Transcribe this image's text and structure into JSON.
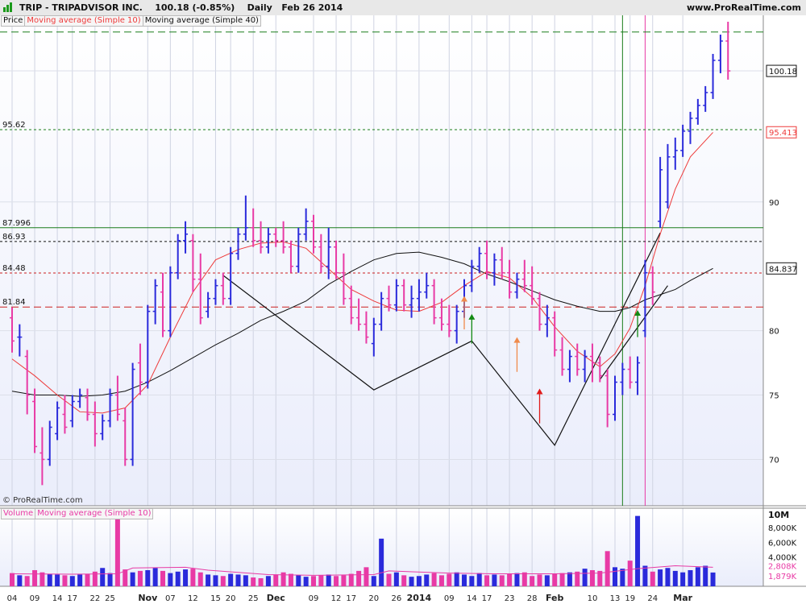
{
  "header": {
    "title": "TRIP - TRIPADVISOR INC.",
    "last": "100.18 (-0.85%)",
    "period": "Daily",
    "date": "Feb 26 2014",
    "site": "www.ProRealTime.com"
  },
  "legend": {
    "price": "Price",
    "ma10": "Moving average (Simple 10)",
    "ma40": "Moving average (Simple 40)",
    "volume": "Volume",
    "vol_ma": "Moving average (Simple 10)"
  },
  "watermark": "© ProRealTime.com",
  "colors": {
    "up": "#2a2adb",
    "down": "#e83aa5",
    "ma10": "#ee3b3b",
    "ma40": "#111111",
    "level_green": "#1a7d1a",
    "level_red": "#cc1f1f",
    "plot_bg": "#eaedfb",
    "arrow_green": "#138a13",
    "arrow_orange": "#f08a4b",
    "arrow_red": "#e01b1b"
  },
  "chart_data": {
    "type": "bar",
    "ylim": [
      66.4,
      104.5
    ],
    "y_ticks": [
      "70",
      "75",
      "80",
      "90"
    ],
    "current_price_label": "100.18",
    "ma10_label": "95.413",
    "ma40_label": "84.837",
    "levels": [
      {
        "label": "",
        "value": 103.2,
        "style": "dashed",
        "color": "level_green"
      },
      {
        "label": "95.62",
        "value": 95.62,
        "style": "dotted",
        "color": "level_green"
      },
      {
        "label": "87.996",
        "value": 87.996,
        "style": "solid",
        "color": "level_green"
      },
      {
        "label": "86.93",
        "value": 86.93,
        "style": "dotted",
        "color": "ma40"
      },
      {
        "label": "84.48",
        "value": 84.48,
        "style": "dotted",
        "color": "level_red"
      },
      {
        "label": "81.84",
        "value": 81.84,
        "style": "dashed",
        "color": "level_red"
      }
    ],
    "x_labels": [
      {
        "label": "04",
        "bar": 0
      },
      {
        "label": "09",
        "bar": 3
      },
      {
        "label": "14",
        "bar": 6
      },
      {
        "label": "17",
        "bar": 8
      },
      {
        "label": "22",
        "bar": 11
      },
      {
        "label": "25",
        "bar": 13
      },
      {
        "label": "Nov",
        "bar": 18
      },
      {
        "label": "07",
        "bar": 21
      },
      {
        "label": "12",
        "bar": 24
      },
      {
        "label": "15",
        "bar": 27
      },
      {
        "label": "20",
        "bar": 29
      },
      {
        "label": "25",
        "bar": 32
      },
      {
        "label": "Dec",
        "bar": 35
      },
      {
        "label": "09",
        "bar": 40
      },
      {
        "label": "12",
        "bar": 43
      },
      {
        "label": "17",
        "bar": 45
      },
      {
        "label": "20",
        "bar": 48
      },
      {
        "label": "26",
        "bar": 51
      },
      {
        "label": "2014",
        "bar": 54
      },
      {
        "label": "09",
        "bar": 58
      },
      {
        "label": "14",
        "bar": 61
      },
      {
        "label": "17",
        "bar": 63
      },
      {
        "label": "23",
        "bar": 66
      },
      {
        "label": "28",
        "bar": 69
      },
      {
        "label": "Feb",
        "bar": 72
      },
      {
        "label": "10",
        "bar": 77
      },
      {
        "label": "13",
        "bar": 80
      },
      {
        "label": "19",
        "bar": 82
      },
      {
        "label": "24",
        "bar": 85
      },
      {
        "label": "Mar",
        "bar": 89
      }
    ],
    "ohlc": [
      [
        81.0,
        81.8,
        78.3,
        79.2
      ],
      [
        79.5,
        80.5,
        78.0,
        79.5
      ],
      [
        78.0,
        78.5,
        73.5,
        75.0
      ],
      [
        74.5,
        75.5,
        70.5,
        71.0
      ],
      [
        70.5,
        72.5,
        68.0,
        70.0
      ],
      [
        70.0,
        73.0,
        69.5,
        72.5
      ],
      [
        72.0,
        74.5,
        71.5,
        74.0
      ],
      [
        73.5,
        75.0,
        72.0,
        72.5
      ],
      [
        73.0,
        75.0,
        72.5,
        74.5
      ],
      [
        74.5,
        75.5,
        74.0,
        75.0
      ],
      [
        74.8,
        75.5,
        73.0,
        73.5
      ],
      [
        73.5,
        74.5,
        71.0,
        72.0
      ],
      [
        72.0,
        73.5,
        71.5,
        73.0
      ],
      [
        73.0,
        75.5,
        72.5,
        75.0
      ],
      [
        75.0,
        76.5,
        73.0,
        73.5
      ],
      [
        73.0,
        74.0,
        69.5,
        70.0
      ],
      [
        70.0,
        77.5,
        69.5,
        77.0
      ],
      [
        77.5,
        79.0,
        75.0,
        76.0
      ],
      [
        76.0,
        82.0,
        75.5,
        81.5
      ],
      [
        81.5,
        84.0,
        80.5,
        83.5
      ],
      [
        83.0,
        84.5,
        79.5,
        80.0
      ],
      [
        80.0,
        85.0,
        79.5,
        84.5
      ],
      [
        84.5,
        87.5,
        84.0,
        87.0
      ],
      [
        87.0,
        88.5,
        86.0,
        87.5
      ],
      [
        87.0,
        87.5,
        83.0,
        84.0
      ],
      [
        84.0,
        86.0,
        80.5,
        81.0
      ],
      [
        81.5,
        83.0,
        81.0,
        82.5
      ],
      [
        82.5,
        84.0,
        82.0,
        83.5
      ],
      [
        83.5,
        84.5,
        82.0,
        82.5
      ],
      [
        82.5,
        86.5,
        82.0,
        86.0
      ],
      [
        86.0,
        88.0,
        85.5,
        87.5
      ],
      [
        87.5,
        90.5,
        87.0,
        88.0
      ],
      [
        88.0,
        89.5,
        86.5,
        87.0
      ],
      [
        87.0,
        88.5,
        86.0,
        86.5
      ],
      [
        86.5,
        88.0,
        86.0,
        87.5
      ],
      [
        87.5,
        88.0,
        86.5,
        87.0
      ],
      [
        87.0,
        88.5,
        86.0,
        86.5
      ],
      [
        86.5,
        87.0,
        84.5,
        85.0
      ],
      [
        85.0,
        88.0,
        84.5,
        87.5
      ],
      [
        87.5,
        89.5,
        87.0,
        88.5
      ],
      [
        88.5,
        89.0,
        86.0,
        86.5
      ],
      [
        86.5,
        87.5,
        84.5,
        85.0
      ],
      [
        85.0,
        88.0,
        84.0,
        86.5
      ],
      [
        86.5,
        87.0,
        84.0,
        84.5
      ],
      [
        84.5,
        86.0,
        82.0,
        82.5
      ],
      [
        82.5,
        83.5,
        80.5,
        81.0
      ],
      [
        81.0,
        82.5,
        80.0,
        80.5
      ],
      [
        80.5,
        81.5,
        79.0,
        79.5
      ],
      [
        79.0,
        81.0,
        78.0,
        80.5
      ],
      [
        80.5,
        83.0,
        80.0,
        82.5
      ],
      [
        82.5,
        83.5,
        81.5,
        82.0
      ],
      [
        82.0,
        84.0,
        81.5,
        83.5
      ],
      [
        83.5,
        84.0,
        81.5,
        82.0
      ],
      [
        82.0,
        83.5,
        81.0,
        82.5
      ],
      [
        82.5,
        84.0,
        81.5,
        83.0
      ],
      [
        83.0,
        84.5,
        82.5,
        83.5
      ],
      [
        83.5,
        84.0,
        80.5,
        81.0
      ],
      [
        81.0,
        82.5,
        80.0,
        80.5
      ],
      [
        80.5,
        82.0,
        79.5,
        80.0
      ],
      [
        80.0,
        82.0,
        79.0,
        81.5
      ],
      [
        81.5,
        84.0,
        81.0,
        83.5
      ],
      [
        83.5,
        85.5,
        83.0,
        85.0
      ],
      [
        85.0,
        86.5,
        84.5,
        86.0
      ],
      [
        86.0,
        87.0,
        84.0,
        84.5
      ],
      [
        84.5,
        86.0,
        83.5,
        85.5
      ],
      [
        85.5,
        86.5,
        84.0,
        84.5
      ],
      [
        84.5,
        85.5,
        82.5,
        83.0
      ],
      [
        83.0,
        84.5,
        82.5,
        84.0
      ],
      [
        84.0,
        85.5,
        83.0,
        83.5
      ],
      [
        83.5,
        85.0,
        82.0,
        82.5
      ],
      [
        82.5,
        83.0,
        80.0,
        80.5
      ],
      [
        80.5,
        82.0,
        79.5,
        81.0
      ],
      [
        81.0,
        81.5,
        78.0,
        78.5
      ],
      [
        78.5,
        79.5,
        76.5,
        77.0
      ],
      [
        77.0,
        78.5,
        76.0,
        78.0
      ],
      [
        78.0,
        79.0,
        76.5,
        77.0
      ],
      [
        77.0,
        78.5,
        76.0,
        78.0
      ],
      [
        78.0,
        79.0,
        76.0,
        77.5
      ],
      [
        77.5,
        78.0,
        76.0,
        76.5
      ],
      [
        76.5,
        77.0,
        72.5,
        73.5
      ],
      [
        73.5,
        76.5,
        73.0,
        76.0
      ],
      [
        76.0,
        77.5,
        75.0,
        77.0
      ],
      [
        77.0,
        78.0,
        75.5,
        76.0
      ],
      [
        76.0,
        78.0,
        75.0,
        77.5
      ],
      [
        80.0,
        85.5,
        79.5,
        84.5
      ],
      [
        84.5,
        85.0,
        82.0,
        83.0
      ],
      [
        88.5,
        93.5,
        88.0,
        92.5
      ],
      [
        90.0,
        94.5,
        89.5,
        93.5
      ],
      [
        93.5,
        95.0,
        92.5,
        94.0
      ],
      [
        94.0,
        96.0,
        93.5,
        95.5
      ],
      [
        95.5,
        97.0,
        94.5,
        96.5
      ],
      [
        96.5,
        98.0,
        96.0,
        97.5
      ],
      [
        97.5,
        99.0,
        97.0,
        98.5
      ],
      [
        98.5,
        101.5,
        98.0,
        101.0
      ],
      [
        101.0,
        103.0,
        100.0,
        102.5
      ],
      [
        102.5,
        104.0,
        99.5,
        100.18
      ]
    ],
    "ma10": [
      [
        0,
        77.8
      ],
      [
        3,
        76.5
      ],
      [
        6,
        75.0
      ],
      [
        9,
        73.7
      ],
      [
        12,
        73.6
      ],
      [
        15,
        74.0
      ],
      [
        18,
        75.8
      ],
      [
        21,
        79.5
      ],
      [
        24,
        83.0
      ],
      [
        27,
        85.5
      ],
      [
        30,
        86.3
      ],
      [
        33,
        86.8
      ],
      [
        36,
        86.9
      ],
      [
        39,
        86.4
      ],
      [
        42,
        84.8
      ],
      [
        45,
        83.2
      ],
      [
        48,
        82.3
      ],
      [
        51,
        81.6
      ],
      [
        54,
        81.5
      ],
      [
        57,
        82.2
      ],
      [
        60,
        83.5
      ],
      [
        63,
        84.6
      ],
      [
        66,
        84.1
      ],
      [
        69,
        82.6
      ],
      [
        72,
        80.3
      ],
      [
        75,
        78.4
      ],
      [
        78,
        77.2
      ],
      [
        80,
        78.2
      ],
      [
        82,
        80.2
      ],
      [
        84,
        83.5
      ],
      [
        86,
        87.5
      ],
      [
        88,
        91.0
      ],
      [
        90,
        93.5
      ],
      [
        93,
        95.4
      ]
    ],
    "ma40": [
      [
        0,
        75.3
      ],
      [
        3,
        75.0
      ],
      [
        6,
        75.0
      ],
      [
        9,
        74.9
      ],
      [
        12,
        75.0
      ],
      [
        15,
        75.3
      ],
      [
        18,
        76.0
      ],
      [
        21,
        76.9
      ],
      [
        24,
        77.9
      ],
      [
        27,
        78.9
      ],
      [
        30,
        79.8
      ],
      [
        33,
        80.8
      ],
      [
        36,
        81.5
      ],
      [
        39,
        82.3
      ],
      [
        42,
        83.6
      ],
      [
        45,
        84.6
      ],
      [
        48,
        85.5
      ],
      [
        51,
        86.0
      ],
      [
        54,
        86.1
      ],
      [
        57,
        85.7
      ],
      [
        60,
        85.2
      ],
      [
        63,
        84.4
      ],
      [
        66,
        83.8
      ],
      [
        69,
        83.1
      ],
      [
        72,
        82.4
      ],
      [
        75,
        81.9
      ],
      [
        78,
        81.5
      ],
      [
        80,
        81.5
      ],
      [
        82,
        81.8
      ],
      [
        84,
        82.4
      ],
      [
        86,
        82.8
      ],
      [
        88,
        83.2
      ],
      [
        90,
        83.9
      ],
      [
        93,
        84.837
      ]
    ],
    "trend_zigzag": [
      [
        28,
        84.3
      ],
      [
        48,
        75.4
      ],
      [
        61,
        79.2
      ],
      [
        72,
        71.1
      ],
      [
        86,
        87.6
      ]
    ],
    "trend_support": [
      [
        78,
        76.2
      ],
      [
        87,
        83.5
      ]
    ],
    "signal_arrows": [
      {
        "bar": 60,
        "color": "arrow_orange",
        "dir": "up",
        "y_from": 80.1,
        "y_to": 82.7
      },
      {
        "bar": 61,
        "color": "arrow_green",
        "dir": "up",
        "y_from": 79.0,
        "y_to": 81.3
      },
      {
        "bar": 67,
        "color": "arrow_orange",
        "dir": "up",
        "y_from": 76.8,
        "y_to": 79.5
      },
      {
        "bar": 70,
        "color": "arrow_red",
        "dir": "up",
        "y_from": 72.8,
        "y_to": 75.5
      },
      {
        "bar": 83,
        "color": "arrow_green",
        "dir": "up",
        "y_from": 79.5,
        "y_to": 81.6
      }
    ],
    "vertical_markers": [
      {
        "bar": 81,
        "color": "level_green"
      },
      {
        "bar": 84,
        "color": "down"
      }
    ],
    "volume": {
      "axis_labels": [
        "10M",
        "8,000K",
        "6,000K",
        "4,000K"
      ],
      "ma_label": "2,808K",
      "last_label": "1,879K",
      "ylim": [
        0,
        10000
      ],
      "values": [
        1800,
        1500,
        1400,
        2200,
        1900,
        1700,
        1600,
        1500,
        1400,
        1600,
        1700,
        2000,
        2500,
        1800,
        10000,
        2300,
        1900,
        2100,
        2200,
        2500,
        2100,
        1800,
        2000,
        2300,
        2400,
        1900,
        1600,
        1500,
        1400,
        1700,
        1600,
        1500,
        1200,
        1100,
        1400,
        1600,
        1900,
        1700,
        1500,
        1300,
        1400,
        1500,
        1600,
        1400,
        1500,
        1700,
        2100,
        2600,
        1400,
        6500,
        1700,
        1900,
        1500,
        1300,
        1400,
        1600,
        1800,
        1500,
        1700,
        1900,
        1600,
        1400,
        1800,
        1500,
        1600,
        1500,
        1700,
        1800,
        1900,
        1400,
        1600,
        1500,
        1700,
        1800,
        1900,
        2000,
        2400,
        2200,
        2100,
        4800,
        2600,
        2400,
        3500,
        9600,
        2800,
        2000,
        2300,
        2500,
        2100,
        1900,
        2200,
        2600,
        2800,
        1879
      ],
      "ma": [
        [
          0,
          1700
        ],
        [
          8,
          1650
        ],
        [
          14,
          1700
        ],
        [
          16,
          2500
        ],
        [
          23,
          2600
        ],
        [
          26,
          2200
        ],
        [
          34,
          1600
        ],
        [
          40,
          1500
        ],
        [
          48,
          1600
        ],
        [
          50,
          2100
        ],
        [
          58,
          1800
        ],
        [
          64,
          1700
        ],
        [
          72,
          1700
        ],
        [
          78,
          1800
        ],
        [
          83,
          2400
        ],
        [
          88,
          2800
        ],
        [
          93,
          2600
        ]
      ]
    }
  }
}
